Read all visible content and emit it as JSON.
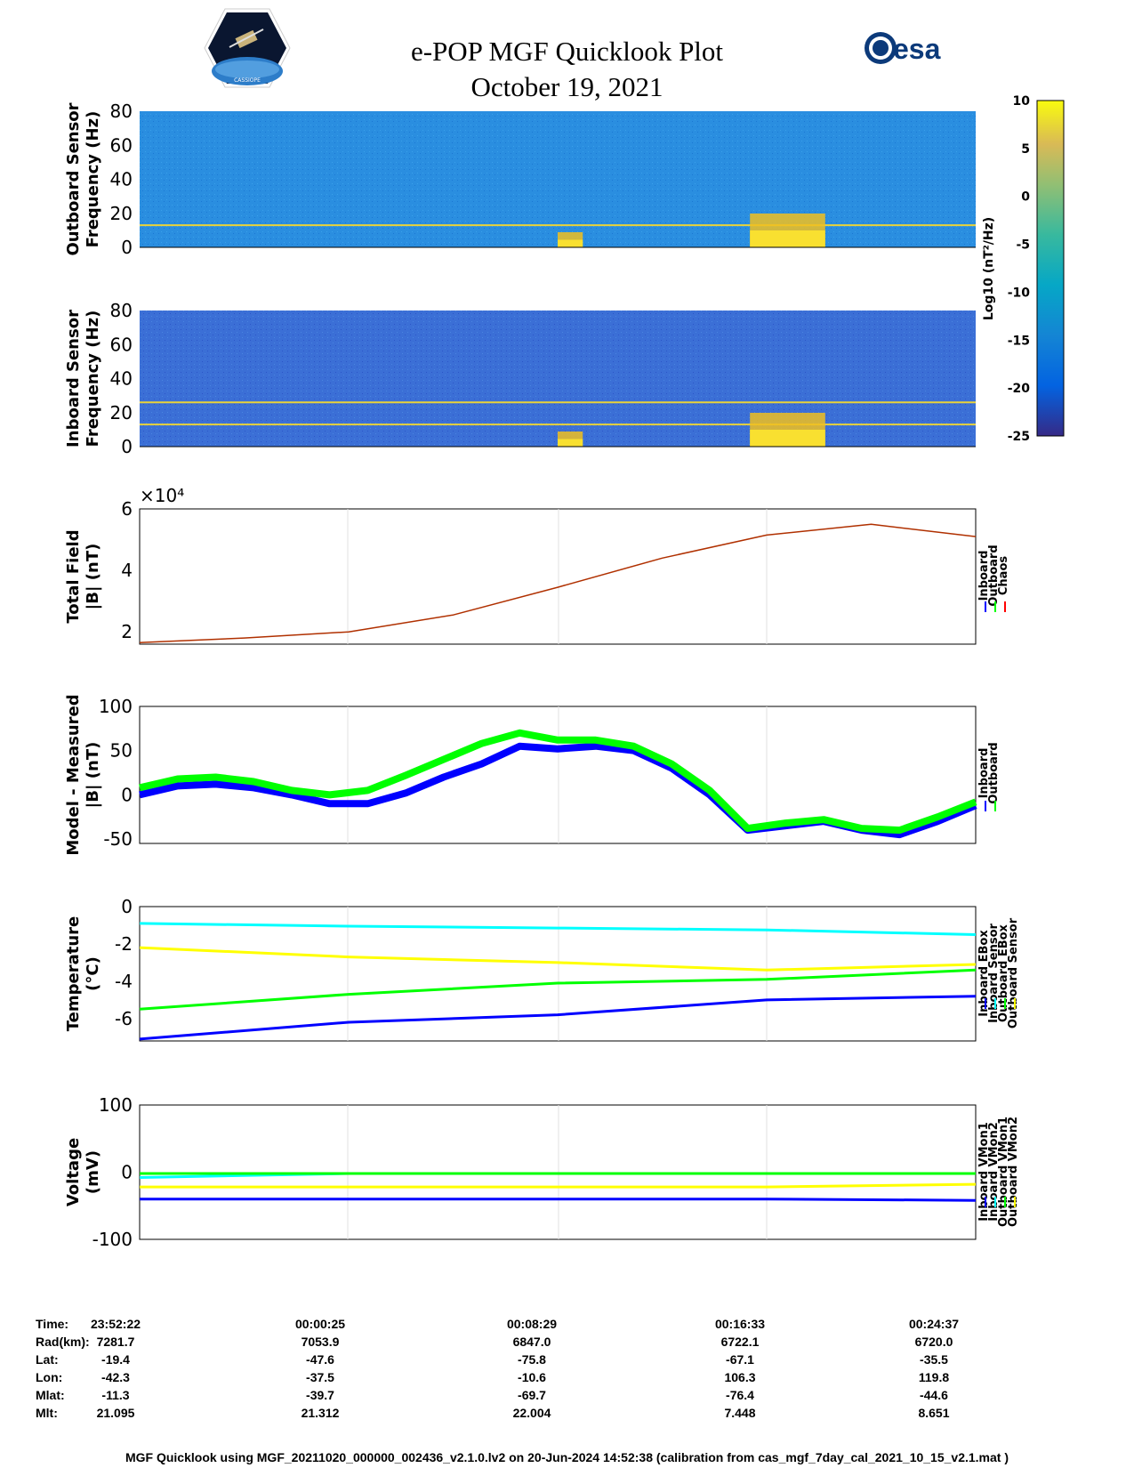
{
  "header": {
    "title_line1": "e-POP MGF Quicklook Plot",
    "title_line2": "October 19, 2021",
    "left_logo": "cassiope-satellite-logo",
    "left_logo_text": "CASSIOPE",
    "right_logo_text": "esa"
  },
  "colorbar": {
    "label": "Log10 (nT²/Hz)",
    "ticks": [
      "10",
      "5",
      "0",
      "-5",
      "-10",
      "-15",
      "-20",
      "-25"
    ],
    "range": [
      -25,
      10
    ],
    "colormap": "parula"
  },
  "chart_data": [
    {
      "type": "heatmap",
      "name": "outboard-spectrogram",
      "ylabel": [
        "Outboard Sensor",
        "Frequency (Hz)"
      ],
      "yticks": [
        "80",
        "60",
        "40",
        "20",
        "0"
      ],
      "ylim": [
        0,
        80
      ],
      "background_color": "#2a8ee0",
      "lines_hz": [
        13
      ],
      "bursts": [
        [
          0.5,
          0.53,
          0.2
        ],
        [
          0.73,
          0.82,
          0.8
        ]
      ]
    },
    {
      "type": "heatmap",
      "name": "inboard-spectrogram",
      "ylabel": [
        "Inboard Sensor",
        "Frequency (Hz)"
      ],
      "yticks": [
        "80",
        "60",
        "40",
        "20",
        "0"
      ],
      "ylim": [
        0,
        80
      ],
      "background_color": "#3b6fd6",
      "lines_hz": [
        13,
        26
      ],
      "bursts": [
        [
          0.5,
          0.53,
          0.2
        ],
        [
          0.73,
          0.82,
          0.8
        ]
      ]
    },
    {
      "type": "line",
      "name": "total-field",
      "ylabel": [
        "Total Field",
        "|B| (nT)"
      ],
      "exponent_label": "×10⁴",
      "yticks": [
        "6",
        "4",
        "2"
      ],
      "ylim": [
        1.6,
        6
      ],
      "legend": [
        "Inboard",
        "Outboard",
        "Chaos"
      ],
      "legend_colors": [
        "#0000ff",
        "#00ff00",
        "#ff0000"
      ],
      "x": [
        "23:52:22",
        "23:56:22",
        "00:00:25",
        "00:04:25",
        "00:08:29",
        "00:12:29",
        "00:16:33",
        "00:20:33",
        "00:24:37"
      ],
      "series": [
        {
          "name": "Chaos",
          "color": "#b03000",
          "values": [
            1.65,
            1.8,
            2.0,
            2.55,
            3.45,
            4.4,
            5.15,
            5.5,
            5.1
          ]
        }
      ]
    },
    {
      "type": "line",
      "name": "model-measured",
      "ylabel": [
        "Model - Measured",
        "|B| (nT)"
      ],
      "yticks": [
        "100",
        "50",
        "0",
        "-50"
      ],
      "ylim": [
        -55,
        100
      ],
      "legend": [
        "Inboard",
        "Outboard"
      ],
      "legend_colors": [
        "#0000ff",
        "#00ff00"
      ],
      "x": [
        "23:52:22",
        "23:54:22",
        "23:56:22",
        "23:58:22",
        "00:00:25",
        "00:02:25",
        "00:04:25",
        "00:06:25",
        "00:08:29",
        "00:09:29",
        "00:10:29",
        "00:11:29",
        "00:12:29",
        "00:13:29",
        "00:14:29",
        "00:15:29",
        "00:16:33",
        "00:17:33",
        "00:18:33",
        "00:19:33",
        "00:20:33",
        "00:22:33",
        "00:24:37"
      ],
      "series": [
        {
          "name": "Inboard",
          "color": "#0000ff",
          "values": [
            0,
            10,
            12,
            8,
            0,
            -10,
            -10,
            2,
            20,
            35,
            55,
            52,
            55,
            50,
            30,
            0,
            -40,
            -35,
            -30,
            -40,
            -45,
            -30,
            -12
          ]
        },
        {
          "name": "Outboard",
          "color": "#00ff00",
          "values": [
            8,
            18,
            20,
            15,
            5,
            0,
            5,
            22,
            40,
            58,
            70,
            62,
            62,
            55,
            35,
            5,
            -38,
            -32,
            -28,
            -38,
            -40,
            -25,
            -8
          ]
        }
      ]
    },
    {
      "type": "line",
      "name": "temperature",
      "ylabel": [
        "Temperature",
        "(°C)"
      ],
      "yticks": [
        "0",
        "-2",
        "-4",
        "-6"
      ],
      "ylim": [
        -7.2,
        0
      ],
      "legend": [
        "Inboard EBox",
        "Inboard Sensor",
        "Outboard EBox",
        "Outboard Sensor"
      ],
      "legend_colors": [
        "#0000ff",
        "#00ffff",
        "#00ff00",
        "#ffff00"
      ],
      "x": [
        "23:52:22",
        "00:00:25",
        "00:08:29",
        "00:16:33",
        "00:24:37"
      ],
      "series": [
        {
          "name": "Inboard EBox",
          "color": "#0000ff",
          "values": [
            -7.1,
            -6.2,
            -5.8,
            -5.0,
            -4.8
          ]
        },
        {
          "name": "Inboard Sensor",
          "color": "#00ffff",
          "values": [
            -0.9,
            -1.05,
            -1.15,
            -1.25,
            -1.5
          ]
        },
        {
          "name": "Outboard EBox",
          "color": "#00ff00",
          "values": [
            -5.5,
            -4.7,
            -4.1,
            -3.9,
            -3.4
          ]
        },
        {
          "name": "Outboard Sensor",
          "color": "#ffff00",
          "values": [
            -2.2,
            -2.7,
            -3.0,
            -3.4,
            -3.1
          ]
        }
      ]
    },
    {
      "type": "line",
      "name": "voltage",
      "ylabel": [
        "Voltage",
        "(mV)"
      ],
      "yticks": [
        "100",
        "0",
        "-100"
      ],
      "ylim": [
        -100,
        100
      ],
      "legend": [
        "Inboard VMon1",
        "Inboard VMon2",
        "Outboard VMon1",
        "Outboard VMon2"
      ],
      "legend_colors": [
        "#0000ff",
        "#00ffff",
        "#00ff00",
        "#ffff00"
      ],
      "x": [
        "23:52:22",
        "00:00:25",
        "00:08:29",
        "00:16:33",
        "00:24:37"
      ],
      "series": [
        {
          "name": "Inboard VMon1",
          "color": "#0000ff",
          "values": [
            -40,
            -40,
            -40,
            -40,
            -42
          ]
        },
        {
          "name": "Inboard VMon2",
          "color": "#00ffff",
          "values": [
            -8,
            -2,
            -2,
            -2,
            -2
          ]
        },
        {
          "name": "Outboard VMon1",
          "color": "#00ff00",
          "values": [
            -2,
            -2,
            -2,
            -2,
            -2
          ]
        },
        {
          "name": "Outboard VMon2",
          "color": "#ffff00",
          "values": [
            -22,
            -22,
            -22,
            -22,
            -18
          ]
        }
      ]
    }
  ],
  "footer": {
    "rows": [
      {
        "label": "Time:",
        "values": [
          "23:52:22",
          "00:00:25",
          "00:08:29",
          "00:16:33",
          "00:24:37"
        ]
      },
      {
        "label": "Rad(km):",
        "values": [
          "7281.7",
          "7053.9",
          "6847.0",
          "6722.1",
          "6720.0"
        ]
      },
      {
        "label": "Lat:",
        "values": [
          "-19.4",
          "-47.6",
          "-75.8",
          "-67.1",
          "-35.5"
        ]
      },
      {
        "label": "Lon:",
        "values": [
          "-42.3",
          "-37.5",
          "-10.6",
          "106.3",
          "119.8"
        ]
      },
      {
        "label": "Mlat:",
        "values": [
          "-11.3",
          "-39.7",
          "-69.7",
          "-76.4",
          "-44.6"
        ]
      },
      {
        "label": "Mlt:",
        "values": [
          "21.095",
          "21.312",
          "22.004",
          "7.448",
          "8.651"
        ]
      }
    ],
    "footnote": "MGF Quicklook using MGF_20211020_000000_002436_v2.1.0.lv2 on 20-Jun-2024 14:52:38 (calibration from cas_mgf_7day_cal_2021_10_15_v2.1.mat )"
  }
}
